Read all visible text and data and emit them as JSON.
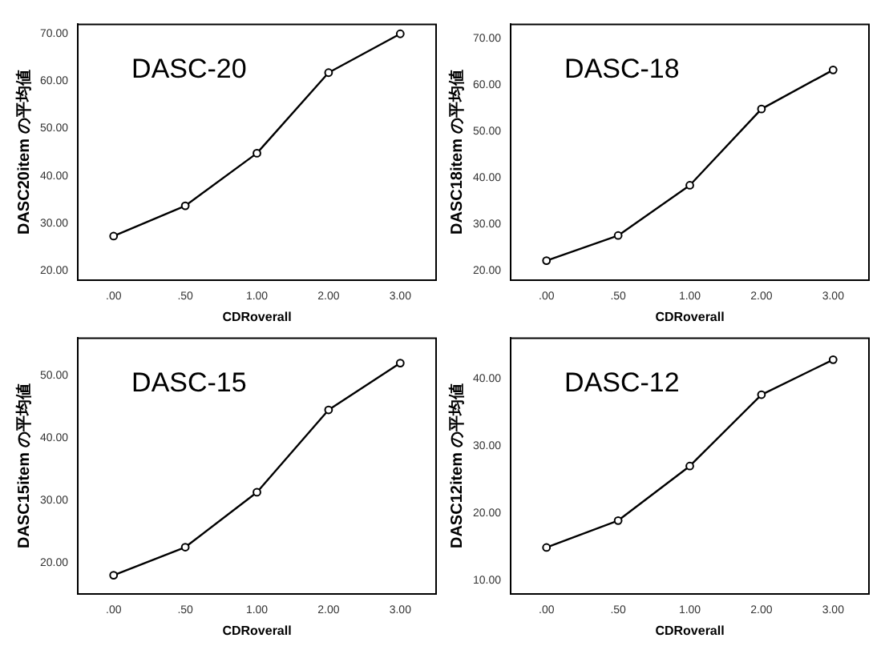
{
  "chart_data": [
    {
      "type": "line",
      "annotations": [
        "DASC-20"
      ],
      "xlabel": "CDRoverall",
      "ylabel": "DASC20item の平均値",
      "categories": [
        ".00",
        ".50",
        "1.00",
        "2.00",
        "3.00"
      ],
      "values": [
        27.3,
        33.7,
        44.8,
        61.8,
        70.0
      ],
      "color": "#000000",
      "marker": "circle",
      "ylim": [
        18,
        72
      ],
      "yticks": [
        {
          "value": 20,
          "label": "20.00"
        },
        {
          "value": 30,
          "label": "30.00"
        },
        {
          "value": 40,
          "label": "40.00"
        },
        {
          "value": 50,
          "label": "50.00"
        },
        {
          "value": 60,
          "label": "60.00"
        },
        {
          "value": 70,
          "label": "70.00"
        }
      ]
    },
    {
      "type": "line",
      "annotations": [
        "DASC-18"
      ],
      "xlabel": "CDRoverall",
      "ylabel": "DASC18item の平均値",
      "categories": [
        ".00",
        ".50",
        "1.00",
        "2.00",
        "3.00"
      ],
      "values": [
        22.2,
        27.6,
        38.4,
        54.8,
        63.2
      ],
      "color": "#000000",
      "marker": "circle",
      "ylim": [
        18,
        73
      ],
      "yticks": [
        {
          "value": 20,
          "label": "20.00"
        },
        {
          "value": 30,
          "label": "30.00"
        },
        {
          "value": 40,
          "label": "40.00"
        },
        {
          "value": 50,
          "label": "50.00"
        },
        {
          "value": 60,
          "label": "60.00"
        },
        {
          "value": 70,
          "label": "70.00"
        }
      ]
    },
    {
      "type": "line",
      "annotations": [
        "DASC-15"
      ],
      "xlabel": "CDRoverall",
      "ylabel": "DASC15item の平均値",
      "categories": [
        ".00",
        ".50",
        "1.00",
        "2.00",
        "3.00"
      ],
      "values": [
        18.0,
        22.5,
        31.3,
        44.5,
        52.0
      ],
      "color": "#000000",
      "marker": "circle",
      "ylim": [
        15,
        56
      ],
      "yticks": [
        {
          "value": 20,
          "label": "20.00"
        },
        {
          "value": 30,
          "label": "30.00"
        },
        {
          "value": 40,
          "label": "40.00"
        },
        {
          "value": 50,
          "label": "50.00"
        }
      ]
    },
    {
      "type": "line",
      "annotations": [
        "DASC-12"
      ],
      "xlabel": "CDRoverall",
      "ylabel": "DASC12item の平均値",
      "categories": [
        ".00",
        ".50",
        "1.00",
        "2.00",
        "3.00"
      ],
      "values": [
        14.9,
        18.9,
        27.0,
        37.6,
        42.8
      ],
      "color": "#000000",
      "marker": "circle",
      "ylim": [
        8,
        46
      ],
      "yticks": [
        {
          "value": 10,
          "label": "10.00"
        },
        {
          "value": 20,
          "label": "20.00"
        },
        {
          "value": 30,
          "label": "30.00"
        },
        {
          "value": 40,
          "label": "40.00"
        }
      ]
    }
  ]
}
